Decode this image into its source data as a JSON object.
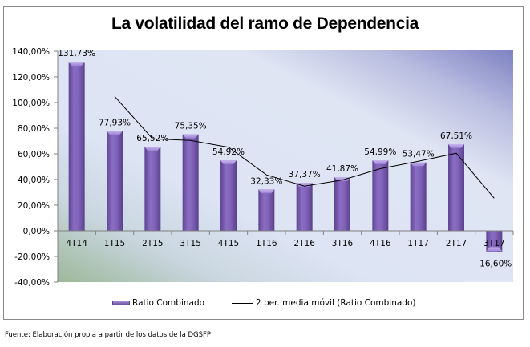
{
  "chart_data": {
    "type": "bar",
    "title": "La volatilidad del ramo de Dependencia",
    "xlabel": "",
    "ylabel": "",
    "categories": [
      "4T14",
      "1T15",
      "2T15",
      "3T15",
      "4T15",
      "1T16",
      "2T16",
      "3T16",
      "4T16",
      "1T17",
      "2T17",
      "3T17"
    ],
    "series": [
      {
        "name": "Ratio Combinado",
        "type": "bar",
        "values": [
          131.73,
          77.93,
          65.52,
          75.35,
          54.92,
          32.33,
          37.37,
          41.87,
          54.99,
          53.47,
          67.51,
          -16.6
        ],
        "labels": [
          "131,73%",
          "77,93%",
          "65,52%",
          "75,35%",
          "54,92%",
          "32,33%",
          "37,37%",
          "41,87%",
          "54,99%",
          "53,47%",
          "67,51%",
          "-16,60%"
        ],
        "color": "#7b5fb5"
      },
      {
        "name": "2 per. media móvil (Ratio Combinado)",
        "type": "line",
        "values": [
          null,
          104.83,
          71.73,
          70.44,
          65.14,
          43.63,
          34.85,
          39.62,
          48.43,
          54.23,
          60.49,
          25.46
        ],
        "color": "#000000"
      }
    ],
    "ylim": [
      -40,
      140
    ],
    "yticks": [
      140,
      120,
      100,
      80,
      60,
      40,
      20,
      0,
      -20,
      -40
    ],
    "ytick_labels": [
      "140,00%",
      "120,00%",
      "100,00%",
      "80,00%",
      "60,00%",
      "40,00%",
      "20,00%",
      "0,00%",
      "-20,00%",
      "-40,00%"
    ],
    "grid": false,
    "legend": "bottom"
  },
  "legend": {
    "bar_label": "Ratio Combinado",
    "line_label": "2 per. media móvil (Ratio Combinado)"
  },
  "source": "Fuente: Elaboración propia a partir de los datos de la DGSFP",
  "colors": {
    "bar_light": "#9f86d2",
    "bar_dark": "#5d4590",
    "plot_bg_top_right": "#8a8cc8",
    "plot_bg_main": "#dde4f4",
    "plot_bg_bottom_left": "#9fb89c"
  }
}
